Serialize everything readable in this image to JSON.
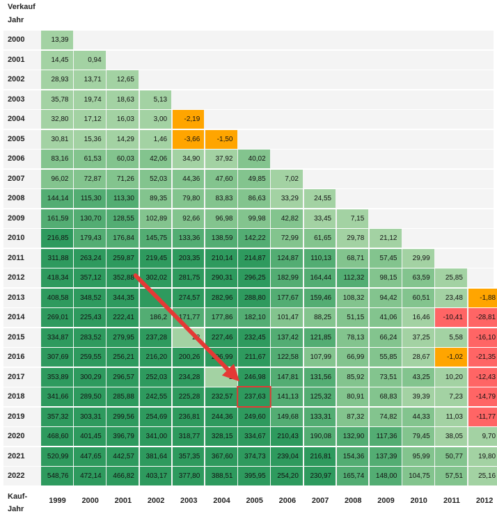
{
  "header": {
    "verkauf": "Verkauf",
    "jahr_top": "Jahr",
    "kauf": "Kauf-",
    "jahr_bottom": "Jahr"
  },
  "colors": {
    "green_light": "#a3d2a3",
    "green_mid": "#83c48e",
    "green": "#53ad73",
    "green_dark": "#2e9a5e",
    "orange": "#ffa500",
    "red": "#ff6565",
    "stripe": "#f4f4f4",
    "highlight": "#e53935"
  },
  "chart_data": {
    "type": "heatmap",
    "row_axis": "Verkauf Jahr",
    "col_axis": "Kauf-Jahr",
    "rows": [
      "2000",
      "2001",
      "2002",
      "2003",
      "2004",
      "2005",
      "2006",
      "2007",
      "2008",
      "2009",
      "2010",
      "2011",
      "2012",
      "2013",
      "2014",
      "2015",
      "2016",
      "2017",
      "2018",
      "2019",
      "2020",
      "2021",
      "2022"
    ],
    "columns": [
      "1999",
      "2000",
      "2001",
      "2002",
      "2003",
      "2004",
      "2005",
      "2006",
      "2007",
      "2008",
      "2009",
      "2010",
      "2011",
      "2012"
    ],
    "values": [
      [
        "13,39"
      ],
      [
        "14,45",
        "0,94"
      ],
      [
        "28,93",
        "13,71",
        "12,65"
      ],
      [
        "35,78",
        "19,74",
        "18,63",
        "5,13"
      ],
      [
        "32,80",
        "17,12",
        "16,03",
        "3,00",
        "-2,19"
      ],
      [
        "30,81",
        "15,36",
        "14,29",
        "1,46",
        "-3,66",
        "-1,50"
      ],
      [
        "83,16",
        "61,53",
        "60,03",
        "42,06",
        "34,90",
        "37,92",
        "40,02"
      ],
      [
        "96,02",
        "72,87",
        "71,26",
        "52,03",
        "44,36",
        "47,60",
        "49,85",
        "7,02"
      ],
      [
        "144,14",
        "115,30",
        "113,30",
        "89,35",
        "79,80",
        "83,83",
        "86,63",
        "33,29",
        "24,55"
      ],
      [
        "161,59",
        "130,70",
        "128,55",
        "102,89",
        "92,66",
        "96,98",
        "99,98",
        "42,82",
        "33,45",
        "7,15"
      ],
      [
        "216,85",
        "179,43",
        "176,84",
        "145,75",
        "133,36",
        "138,59",
        "142,22",
        "72,99",
        "61,65",
        "29,78",
        "21,12"
      ],
      [
        "311,88",
        "263,24",
        "259,87",
        "219,45",
        "203,35",
        "210,14",
        "214,87",
        "124,87",
        "110,13",
        "68,71",
        "57,45",
        "29,99"
      ],
      [
        "418,34",
        "357,12",
        "352,88",
        "302,02",
        "281,75",
        "290,31",
        "296,25",
        "182,99",
        "164,44",
        "112,32",
        "98,15",
        "63,59",
        "25,85"
      ],
      [
        "408,58",
        "348,52",
        "344,35",
        "",
        "274,57",
        "282,96",
        "288,80",
        "177,67",
        "159,46",
        "108,32",
        "94,42",
        "60,51",
        "23,48",
        "-1,88"
      ],
      [
        "269,01",
        "225,43",
        "222,41",
        "186,2",
        "171,77",
        "177,86",
        "182,10",
        "101,47",
        "88,25",
        "51,15",
        "41,06",
        "16,46",
        "-10,41",
        "-28,81"
      ],
      [
        "334,87",
        "283,52",
        "279,95",
        "237,28",
        "22",
        "227,46",
        "232,45",
        "137,42",
        "121,85",
        "78,13",
        "66,24",
        "37,25",
        "5,58",
        "-16,10"
      ],
      [
        "307,69",
        "259,55",
        "256,21",
        "216,20",
        "200,26",
        "206,99",
        "211,67",
        "122,58",
        "107,99",
        "66,99",
        "55,85",
        "28,67",
        "-1,02",
        "-21,35"
      ],
      [
        "353,89",
        "300,29",
        "296,57",
        "252,03",
        "234,28",
        "2",
        "246,98",
        "147,81",
        "131,56",
        "85,92",
        "73,51",
        "43,25",
        "10,20",
        "-12,43"
      ],
      [
        "341,66",
        "289,50",
        "285,88",
        "242,55",
        "225,28",
        "232,57",
        "237,63",
        "141,13",
        "125,32",
        "80,91",
        "68,83",
        "39,39",
        "7,23",
        "-14,79"
      ],
      [
        "357,32",
        "303,31",
        "299,56",
        "254,69",
        "236,81",
        "244,36",
        "249,60",
        "149,68",
        "133,31",
        "87,32",
        "74,82",
        "44,33",
        "11,03",
        "-11,77"
      ],
      [
        "468,60",
        "401,45",
        "396,79",
        "341,00",
        "318,77",
        "328,15",
        "334,67",
        "210,43",
        "190,08",
        "132,90",
        "117,36",
        "79,45",
        "38,05",
        "9,70"
      ],
      [
        "520,99",
        "447,65",
        "442,57",
        "381,64",
        "357,35",
        "367,60",
        "374,73",
        "239,04",
        "216,81",
        "154,36",
        "137,39",
        "95,99",
        "50,77",
        "19,80"
      ],
      [
        "548,76",
        "472,14",
        "466,82",
        "403,17",
        "377,80",
        "388,51",
        "395,95",
        "254,20",
        "230,97",
        "165,74",
        "148,00",
        "104,75",
        "57,51",
        "25,16"
      ]
    ],
    "highlight": {
      "row": "2018",
      "column": "2005",
      "value": "237,63"
    },
    "arrow": {
      "from": {
        "row": "2012",
        "column": "2002"
      },
      "to": {
        "row": "2017",
        "column": "2005"
      }
    }
  }
}
